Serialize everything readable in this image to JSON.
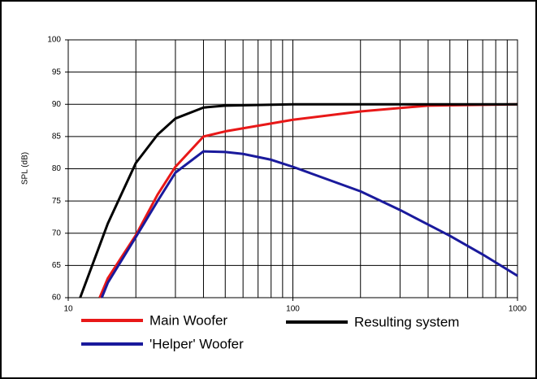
{
  "chart_data": {
    "type": "line",
    "y_label": "SPL (dB)",
    "xlim": [
      10,
      1000
    ],
    "xticks": [
      10,
      100,
      1000
    ],
    "xscale": "log",
    "ylim": [
      60,
      100
    ],
    "yticks": [
      60,
      65,
      70,
      75,
      80,
      85,
      90,
      95,
      100
    ],
    "grid": true,
    "minor_grid": true,
    "legend": "bottom",
    "series": [
      {
        "name": "Main Woofer",
        "color": "#e81818",
        "x": [
          13.8,
          15,
          20,
          25,
          30,
          40,
          50,
          100,
          200,
          400,
          1000
        ],
        "values": [
          60,
          63,
          69.7,
          76,
          80.3,
          85,
          85.8,
          87.6,
          88.9,
          89.8,
          90
        ]
      },
      {
        "name": "'Helper' Woofer",
        "color": "#1a1a9c",
        "x": [
          14.1,
          15,
          20,
          25,
          30,
          40,
          50,
          60,
          80,
          100,
          200,
          300,
          500,
          700,
          1000
        ],
        "values": [
          60,
          62.3,
          69.4,
          75,
          79.4,
          82.7,
          82.6,
          82.3,
          81.4,
          80.3,
          76.5,
          73.6,
          69.6,
          66.7,
          63.4
        ]
      },
      {
        "name": "Resulting system",
        "color": "#000000",
        "x": [
          11.3,
          15,
          20,
          25,
          30,
          40,
          50,
          100,
          1000
        ],
        "values": [
          60,
          71.5,
          80.9,
          85.3,
          87.8,
          89.5,
          89.8,
          90,
          90
        ]
      }
    ]
  }
}
